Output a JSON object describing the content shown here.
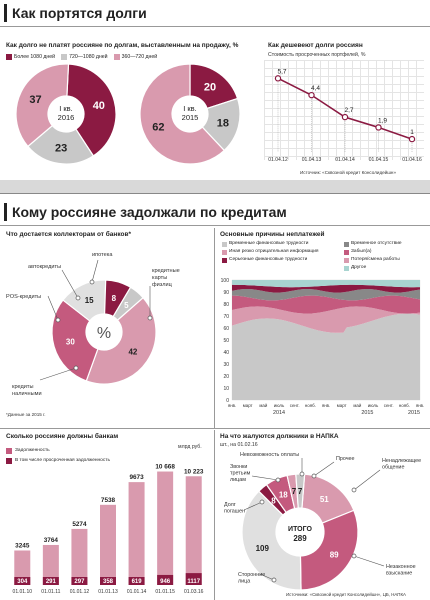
{
  "section1": {
    "title": "Как портятся долги",
    "left_subtitle": "Как долго не платят россияне по долгам, выставленным на продажу, %",
    "legend": [
      "Более 1080 дней",
      "720—1080 дней",
      "360—720 дней"
    ],
    "right_subtitle": "Как дешевеют долги россиян",
    "right_note": "Стоимость просроченных портфелей, %",
    "source": "Источник: «Сквозной кредит Консолидейшн»"
  },
  "section2": {
    "title": "Кому россияне задолжали по кредитам",
    "collectors_title": "Что достается коллекторам от банков*",
    "collectors_note": "*Данные за 2015 г.",
    "collectors_center": "%",
    "causes_title": "Основные причины неплатежей",
    "causes_legend_left": [
      "Временные финансовые трудности",
      "Иная резко отрицательная информация",
      "Серьезные финансовые трудности"
    ],
    "causes_legend_right": [
      "Временное отсутствие",
      "Забыл(а)",
      "Потеря/смена работы",
      "Другое"
    ],
    "debt_title": "Сколько россияне должны банкам",
    "debt_legend": [
      "Задолженность",
      "В том числе просроченная задолженность"
    ],
    "debt_unit": "млрд руб.",
    "complaints_title": "На что жалуются должники в НАПКА",
    "complaints_unit": "шт., на 01.02.16",
    "complaints_center": [
      "ИТОГО",
      "289"
    ],
    "bottom_source": "Источники: «Сквозной кредит Консолидейшн», ЦБ, НАПКА"
  },
  "colors": {
    "dark": "#8b1a42",
    "mid": "#c45a7e",
    "light": "#d99aae",
    "grey": "#c8c8c8",
    "teal": "#a8d4d0",
    "darkgrey": "#888888"
  },
  "chart_data": [
    {
      "type": "pie",
      "title": "I кв. 2016",
      "labels": [
        "Более 1080 дней",
        "720—1080 дней",
        "360—720 дней"
      ],
      "values": [
        40,
        23,
        37
      ]
    },
    {
      "type": "pie",
      "title": "I кв. 2015",
      "labels": [
        "Более 1080 дней",
        "720—1080 дней",
        "360—720 дней"
      ],
      "values": [
        20,
        18,
        62
      ]
    },
    {
      "type": "line",
      "x": [
        "01.04.12",
        "01.04.13",
        "01.04.14",
        "01.04.15",
        "01.04.16"
      ],
      "values": [
        5.7,
        4.4,
        2.7,
        1.9,
        1
      ],
      "value_labels": [
        "5,7",
        "4,4",
        "2,7",
        "1,9",
        "1"
      ]
    },
    {
      "type": "pie",
      "labels": [
        "Кредитные карты физлиц",
        "Кредиты наличными",
        "POS-кредиты",
        "Автокредиты",
        "Ипотека"
      ],
      "values": [
        42,
        30,
        15,
        8,
        5
      ]
    },
    {
      "type": "area",
      "x_ticks": [
        "янв.",
        "март",
        "май",
        "июль",
        "сент.",
        "нояб.",
        "янв.",
        "март",
        "май",
        "июль",
        "сент.",
        "нояб.",
        "янв."
      ],
      "year_labels": [
        "2014",
        "2015",
        "2015"
      ],
      "ylim": [
        0,
        100
      ],
      "y_ticks": [
        0,
        10,
        20,
        30,
        40,
        50,
        60,
        70,
        80,
        90,
        100
      ]
    },
    {
      "type": "bar",
      "categories": [
        "01.01.10",
        "01.01.11",
        "01.01.12",
        "01.01.13",
        "01.01.14",
        "01.01.15",
        "01.03.16"
      ],
      "series": [
        {
          "name": "Задолженность",
          "values": [
            3245,
            3764,
            5274,
            7538,
            9673,
            10668,
            10223
          ]
        },
        {
          "name": "В том числе просроченная задолженность",
          "values": [
            304,
            291,
            297,
            358,
            619,
            946,
            1117
          ]
        }
      ],
      "value_labels": [
        [
          "3245",
          "3764",
          "5274",
          "7538",
          "9673",
          "10 668",
          "10 223"
        ],
        [
          "304",
          "291",
          "297",
          "358",
          "619",
          "946",
          "1117"
        ]
      ]
    },
    {
      "type": "pie",
      "labels": [
        "Ненадлежащее общение",
        "Незаконное взыскание",
        "Сторонние лица",
        "Долг погашен",
        "Звонки третьим лицам",
        "Невозможность оплаты",
        "Прочее"
      ],
      "values": [
        51,
        89,
        109,
        8,
        18,
        7,
        7
      ]
    }
  ]
}
